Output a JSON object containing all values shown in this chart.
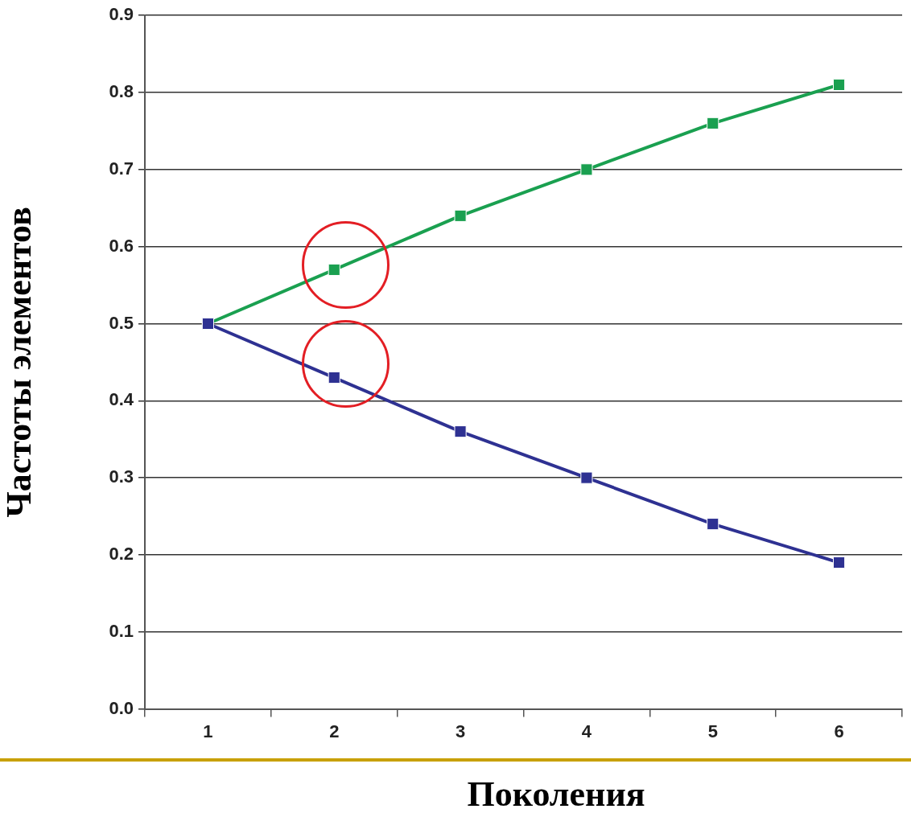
{
  "chart_data": {
    "type": "line",
    "xlabel": "Поколения",
    "ylabel": "Частоты элементов",
    "categories": [
      "1",
      "2",
      "3",
      "4",
      "5",
      "6"
    ],
    "series": [
      {
        "color": "#1aa050",
        "values": [
          0.5,
          0.57,
          0.64,
          0.7,
          0.76,
          0.81
        ]
      },
      {
        "color": "#2e3192",
        "values": [
          0.5,
          0.43,
          0.36,
          0.3,
          0.24,
          0.19
        ]
      }
    ],
    "ylim": [
      0,
      0.9
    ],
    "yticks": [
      {
        "value": 0,
        "label": "0.0"
      },
      0.1,
      0.2,
      0.3,
      0.4,
      0.5,
      0.6,
      0.7,
      0.8,
      0.9
    ],
    "grid": "y",
    "marker": "square",
    "line_style": "solid"
  }
}
